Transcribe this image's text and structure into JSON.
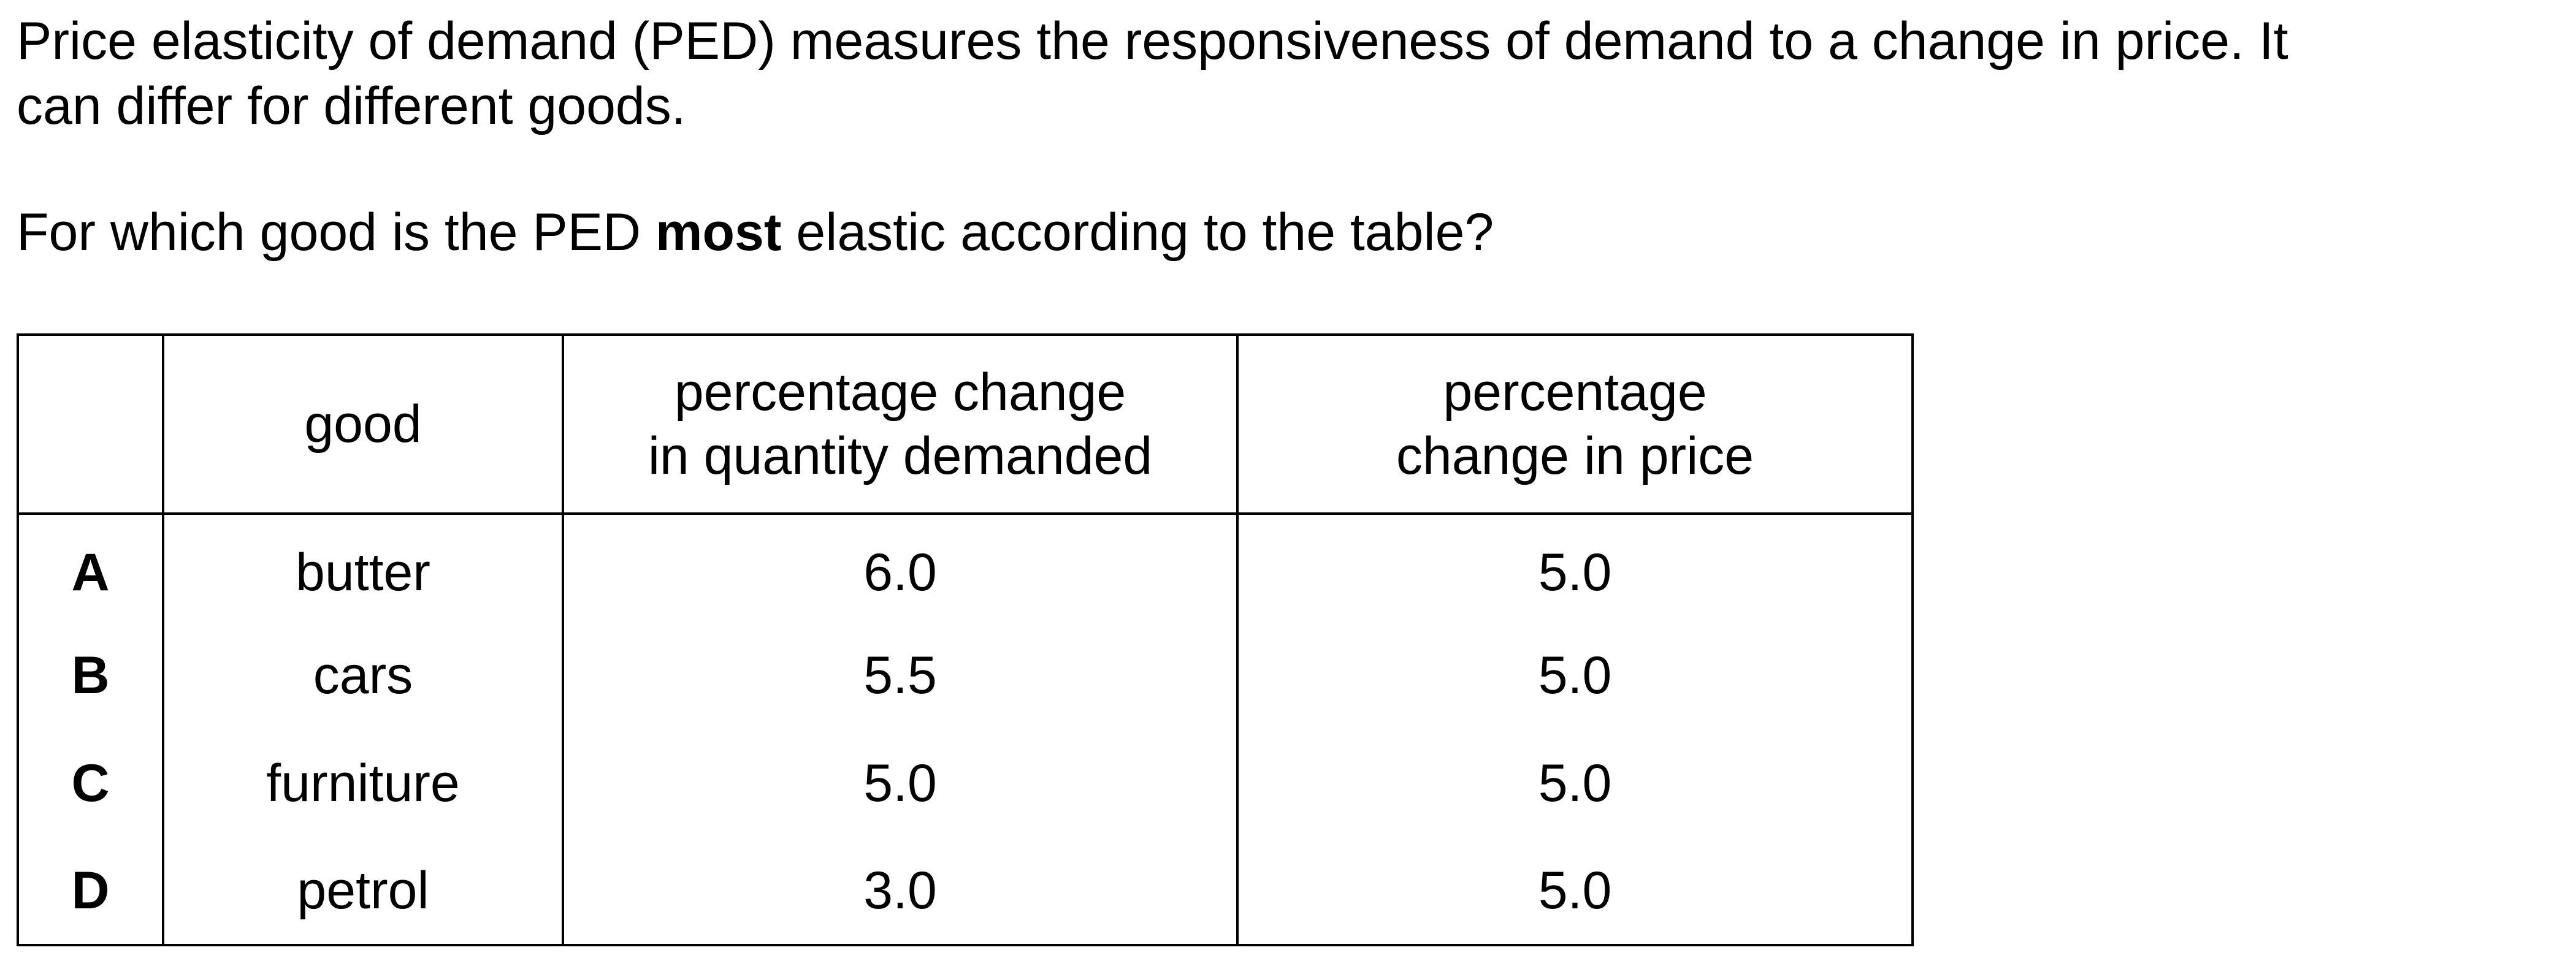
{
  "intro": {
    "line1": "Price elasticity of demand (PED) measures the responsiveness of demand to a change in price. It",
    "line2": "can differ for different goods."
  },
  "question": {
    "before": "For which good is the PED ",
    "emphasis": "most",
    "after": " elastic according to the table?"
  },
  "table": {
    "headers": {
      "option": "",
      "good": "good",
      "qty_line1": "percentage change",
      "qty_line2": "in quantity demanded",
      "price_line1": "percentage",
      "price_line2": "change in price"
    },
    "rows": [
      {
        "option": "A",
        "good": "butter",
        "qty_change": "6.0",
        "price_change": "5.0"
      },
      {
        "option": "B",
        "good": "cars",
        "qty_change": "5.5",
        "price_change": "5.0"
      },
      {
        "option": "C",
        "good": "furniture",
        "qty_change": "5.0",
        "price_change": "5.0"
      },
      {
        "option": "D",
        "good": "petrol",
        "qty_change": "3.0",
        "price_change": "5.0"
      }
    ]
  }
}
